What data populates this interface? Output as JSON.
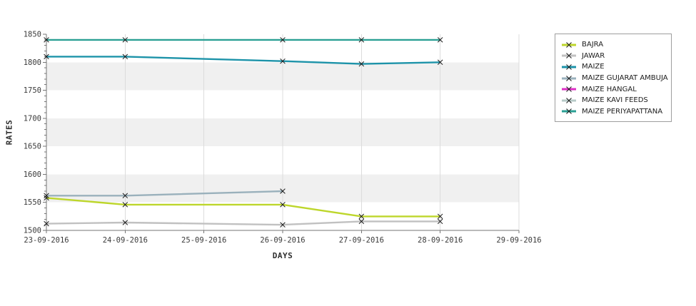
{
  "chart_data": {
    "type": "line",
    "title": "",
    "xlabel": "DAYS",
    "ylabel": "RATES",
    "categories": [
      "23-09-2016",
      "24-09-2016",
      "25-09-2016",
      "26-09-2016",
      "27-09-2016",
      "28-09-2016",
      "29-09-2016"
    ],
    "ylim": [
      1500,
      1850
    ],
    "y_major_step": 50,
    "y_minor_step": 10,
    "marker": "x",
    "legend_position": "right",
    "grid": "vertical date gridlines; alternating horizontal bands every 50 units",
    "band_colors": [
      "#ffffff",
      "#f0f0f0"
    ],
    "gridline_color": "#dcdcdc",
    "axis_color": "#757575",
    "marker_color": "#1a1a1a",
    "series": [
      {
        "name": "BAJRA",
        "color": "#bdd62b",
        "values": [
          1558,
          1546,
          null,
          1546,
          1525,
          1525,
          null
        ]
      },
      {
        "name": "JAWAR",
        "color": "#c1c1c1",
        "values": [
          1512,
          1514,
          null,
          1510,
          1516,
          1516,
          null
        ]
      },
      {
        "name": "MAIZE",
        "color": "#1d93a9",
        "values": [
          1810,
          1810,
          null,
          1802,
          1797,
          1800,
          null
        ]
      },
      {
        "name": "MAIZE GUJARAT AMBUJA",
        "color": "#9ab1bc",
        "values": [
          1562,
          1562,
          null,
          1570,
          null,
          null,
          null
        ]
      },
      {
        "name": "MAIZE HANGAL",
        "color": "#de2fc5",
        "values": [
          null,
          null,
          null,
          null,
          null,
          null,
          null
        ]
      },
      {
        "name": "MAIZE KAVI FEEDS",
        "color": "#b7cac8",
        "values": [
          null,
          null,
          null,
          null,
          null,
          null,
          null
        ]
      },
      {
        "name": "MAIZE PERIYAPATTANA",
        "color": "#2ba094",
        "values": [
          1840,
          1840,
          null,
          1840,
          1840,
          1840,
          null
        ]
      }
    ]
  }
}
